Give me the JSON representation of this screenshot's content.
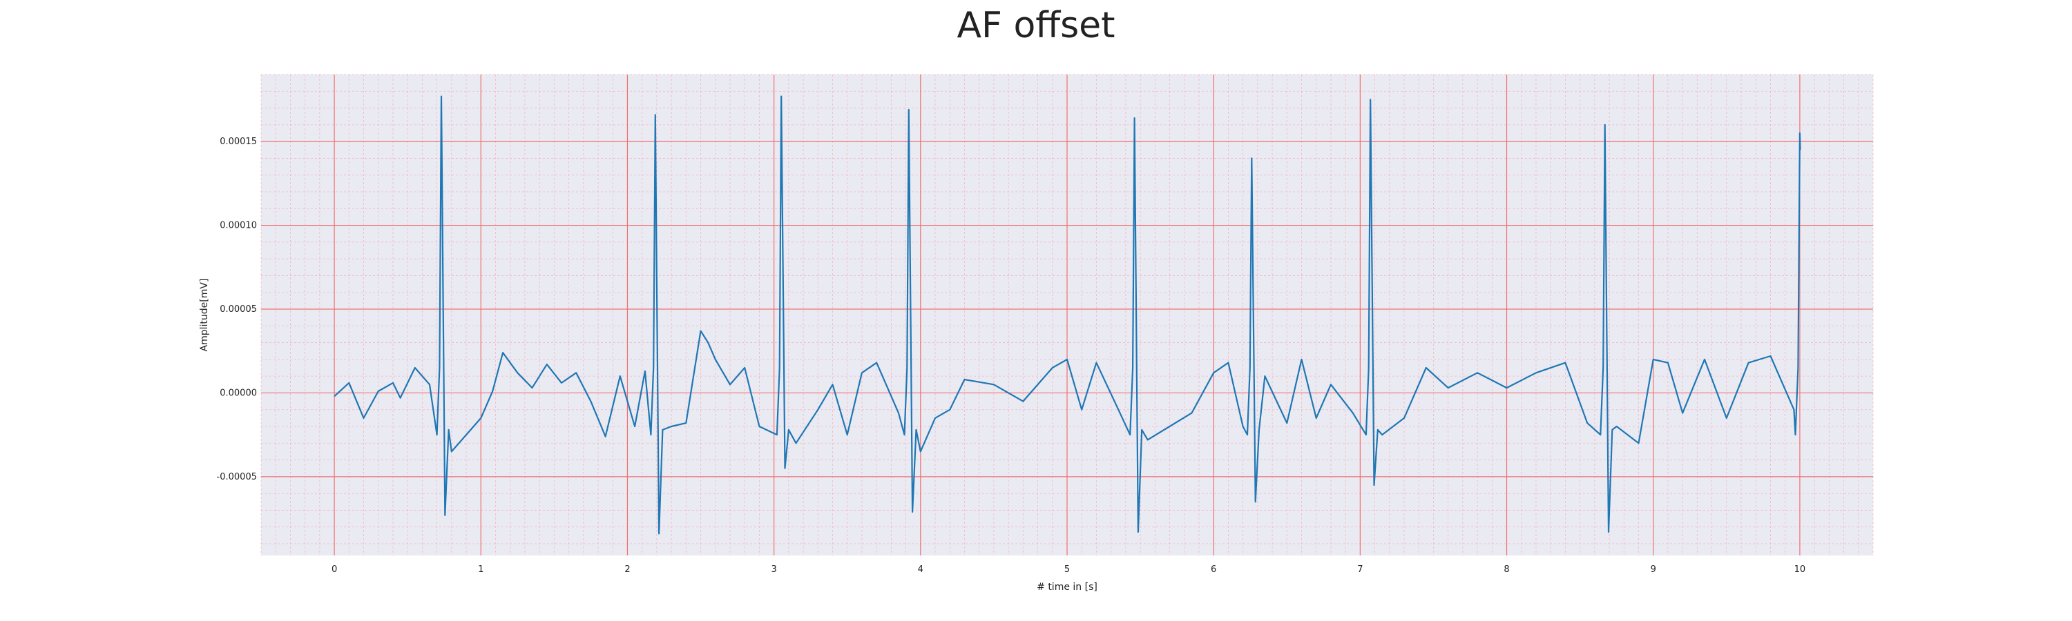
{
  "chart_data": {
    "type": "line",
    "title": "AF offset",
    "xlabel": "# time in [s]",
    "ylabel": "Amplitude[mV]",
    "xlim": [
      -0.5,
      10.5
    ],
    "ylim": [
      -9.7e-05,
      0.00019
    ],
    "xticks": [
      0,
      1,
      2,
      3,
      4,
      5,
      6,
      7,
      8,
      9,
      10
    ],
    "xtick_labels": [
      "0",
      "1",
      "2",
      "3",
      "4",
      "5",
      "6",
      "7",
      "8",
      "9",
      "10"
    ],
    "yticks": [
      -5e-05,
      0.0,
      5e-05,
      0.0001,
      0.00015
    ],
    "ytick_labels": [
      "-0.00005",
      "0.00000",
      "0.00005",
      "0.00010",
      "0.00015"
    ],
    "grid": true,
    "minor_grid": true,
    "colors": {
      "plot_background": "#eaeaf2",
      "major_grid": "#f07070",
      "minor_grid": "#f3b6c2",
      "series": "#1f77b4"
    },
    "series": [
      {
        "name": "",
        "beat_times": [
          0.73,
          2.19,
          3.05,
          3.92,
          5.46,
          6.26,
          7.07,
          8.67,
          10.0
        ],
        "beat_peaks": [
          0.000177,
          0.000166,
          0.000177,
          0.000169,
          0.000164,
          0.00014,
          0.000175,
          0.00016,
          0.000155
        ],
        "beat_troughs": [
          -7.3e-05,
          -8.4e-05,
          -4.5e-05,
          -7.1e-05,
          -8.3e-05,
          -6.5e-05,
          -5.5e-05,
          -8.3e-05,
          -4.2e-05
        ],
        "x": [
          0.0,
          0.1,
          0.2,
          0.3,
          0.4,
          0.45,
          0.55,
          0.65,
          0.8,
          0.9,
          1.0,
          1.08,
          1.15,
          1.25,
          1.35,
          1.45,
          1.55,
          1.65,
          1.75,
          1.85,
          1.95,
          2.05,
          2.12,
          2.3,
          2.4,
          2.5,
          2.55,
          2.6,
          2.7,
          2.8,
          2.9,
          3.15,
          3.3,
          3.4,
          3.5,
          3.6,
          3.7,
          3.85,
          4.0,
          4.1,
          4.2,
          4.3,
          4.5,
          4.7,
          4.9,
          5.0,
          5.1,
          5.2,
          5.35,
          5.55,
          5.7,
          5.85,
          6.0,
          6.1,
          6.2,
          6.35,
          6.5,
          6.6,
          6.7,
          6.8,
          6.95,
          7.15,
          7.3,
          7.45,
          7.6,
          7.8,
          8.0,
          8.2,
          8.4,
          8.55,
          8.75,
          8.9,
          9.0,
          9.1,
          9.2,
          9.35,
          9.5,
          9.65,
          9.8,
          9.9,
          9.96
        ],
        "y": [
          -2e-06,
          6e-06,
          -1.5e-05,
          1e-06,
          6e-06,
          -3e-06,
          1.5e-05,
          5e-06,
          -3.5e-05,
          -2.5e-05,
          -1.5e-05,
          1e-06,
          2.4e-05,
          1.2e-05,
          3e-06,
          1.7e-05,
          6e-06,
          1.2e-05,
          -5e-06,
          -2.6e-05,
          1e-05,
          -2e-05,
          1.3e-05,
          -2e-05,
          -1.8e-05,
          3.7e-05,
          3e-05,
          2e-05,
          5e-06,
          1.5e-05,
          -2e-05,
          -3e-05,
          -1e-05,
          5e-06,
          -2.5e-05,
          1.2e-05,
          1.8e-05,
          -1.2e-05,
          -3.5e-05,
          -1.5e-05,
          -1e-05,
          8e-06,
          5e-06,
          -5e-06,
          1.5e-05,
          2e-05,
          -1e-05,
          1.8e-05,
          -1e-05,
          -2.8e-05,
          -2e-05,
          -1.2e-05,
          1.2e-05,
          1.8e-05,
          -2e-05,
          1e-05,
          -1.8e-05,
          2e-05,
          -1.5e-05,
          5e-06,
          -1.2e-05,
          -2.5e-05,
          -1.5e-05,
          1.5e-05,
          3e-06,
          1.2e-05,
          3e-06,
          1.2e-05,
          1.8e-05,
          -1.8e-05,
          -2e-05,
          -3e-05,
          2e-05,
          1.8e-05,
          -1.2e-05,
          2e-05,
          -1.5e-05,
          1.8e-05,
          2.2e-05,
          2e-06,
          -1e-05
        ]
      }
    ]
  }
}
